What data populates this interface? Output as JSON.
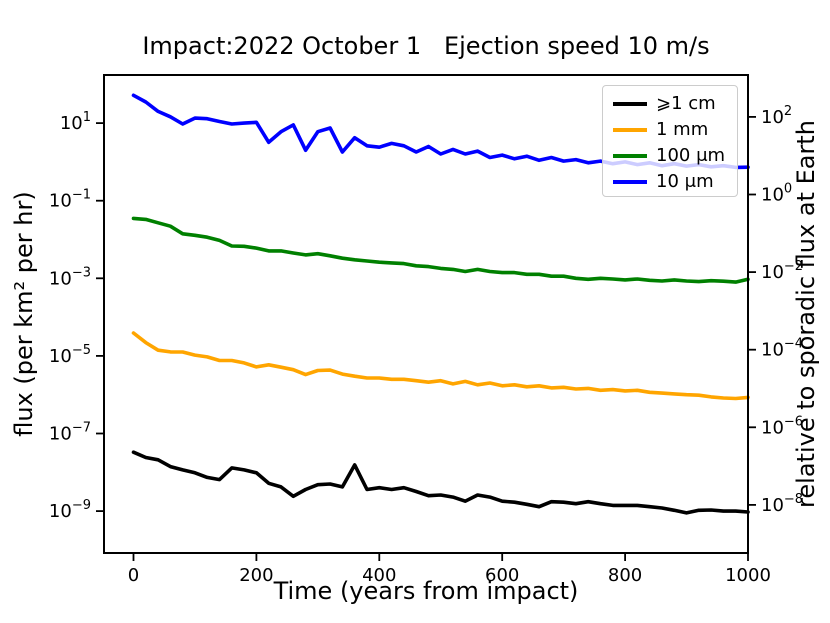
{
  "chart_data": {
    "type": "line",
    "title": "Impact:2022 October 1   Ejection speed 10 m/s",
    "xlabel": "Time (years from impact)",
    "ylabel_left": "flux (per km² per hr)",
    "ylabel_right": "relative to sporadic flux at Earth",
    "grid": false,
    "legend_position": "upper right",
    "x_ticks": [
      0,
      200,
      400,
      600,
      800,
      1000
    ],
    "xlim": [
      -48,
      1000
    ],
    "ylim_left_log10": [
      -10.08,
      2.24
    ],
    "left_tick_exponents": [
      1,
      -1,
      -3,
      -5,
      -7,
      -9
    ],
    "right_tick_exponents": [
      2,
      0,
      -2,
      -4,
      -6,
      -8
    ],
    "right_axis_top_tick_left_log10": 1.16,
    "x": [
      0,
      20,
      40,
      60,
      80,
      100,
      120,
      140,
      160,
      180,
      200,
      220,
      240,
      260,
      280,
      300,
      320,
      340,
      360,
      380,
      400,
      420,
      440,
      460,
      480,
      500,
      520,
      540,
      560,
      580,
      600,
      620,
      640,
      660,
      680,
      700,
      720,
      740,
      760,
      780,
      800,
      820,
      840,
      860,
      880,
      900,
      920,
      940,
      960,
      980,
      1000
    ],
    "series": [
      {
        "name": "⩾1 cm",
        "color": "#000000",
        "values": [
          3.3e-08,
          2.4e-08,
          2.1e-08,
          1.4e-08,
          1.15e-08,
          9.7e-09,
          7.4e-09,
          6.5e-09,
          1.3e-08,
          1.15e-08,
          9.7e-09,
          5.2e-09,
          4.2e-09,
          2.4e-09,
          3.6e-09,
          4.8e-09,
          5e-09,
          4.2e-09,
          1.55e-08,
          3.6e-09,
          4e-09,
          3.6e-09,
          4e-09,
          3.2e-09,
          2.5e-09,
          2.6e-09,
          2.3e-09,
          1.8e-09,
          2.6e-09,
          2.3e-09,
          1.8e-09,
          1.7e-09,
          1.5e-09,
          1.3e-09,
          1.75e-09,
          1.7e-09,
          1.55e-09,
          1.75e-09,
          1.55e-09,
          1.4e-09,
          1.4e-09,
          1.4e-09,
          1.3e-09,
          1.2e-09,
          1.05e-09,
          9e-10,
          1.05e-09,
          1.07e-09,
          1e-09,
          1e-09,
          9.5e-10
        ]
      },
      {
        "name": "1 mm",
        "color": "#FFA500",
        "values": [
          3.9e-05,
          2.2e-05,
          1.4e-05,
          1.27e-05,
          1.26e-05,
          1.05e-05,
          9.4e-06,
          7.6e-06,
          7.6e-06,
          6.6e-06,
          5.2e-06,
          5.9e-06,
          5.1e-06,
          4.4e-06,
          3.3e-06,
          4.2e-06,
          4.3e-06,
          3.4e-06,
          3e-06,
          2.7e-06,
          2.7e-06,
          2.5e-06,
          2.5e-06,
          2.3e-06,
          2.1e-06,
          2.3e-06,
          1.9e-06,
          2.2e-06,
          1.8e-06,
          2e-06,
          1.7e-06,
          1.8e-06,
          1.6e-06,
          1.7e-06,
          1.5e-06,
          1.55e-06,
          1.4e-06,
          1.45e-06,
          1.3e-06,
          1.35e-06,
          1.25e-06,
          1.3e-06,
          1.15e-06,
          1.1e-06,
          1.05e-06,
          1e-06,
          9.7e-07,
          8.8e-07,
          8.2e-07,
          8e-07,
          8.5e-07
        ]
      },
      {
        "name": "100 μm",
        "color": "#008000",
        "values": [
          0.035,
          0.033,
          0.027,
          0.022,
          0.014,
          0.0128,
          0.0115,
          0.0095,
          0.0068,
          0.0067,
          0.006,
          0.0051,
          0.0051,
          0.0045,
          0.004,
          0.0043,
          0.0038,
          0.0033,
          0.003,
          0.0028,
          0.0026,
          0.0025,
          0.0024,
          0.0021,
          0.002,
          0.0018,
          0.0017,
          0.0015,
          0.0017,
          0.0015,
          0.0014,
          0.0014,
          0.00127,
          0.00127,
          0.00113,
          0.00113,
          0.001,
          0.00094,
          0.001,
          0.00096,
          0.00091,
          0.00096,
          0.00089,
          0.00085,
          0.00091,
          0.00085,
          0.00082,
          0.00087,
          0.00084,
          0.0008,
          0.00094
        ]
      },
      {
        "name": "10 μm",
        "color": "#0000FF",
        "values": [
          52,
          35,
          20,
          14.5,
          9.5,
          13.5,
          13,
          11,
          9.5,
          10,
          10.5,
          3.2,
          6,
          9,
          2.0,
          6,
          7.5,
          1.8,
          4.2,
          2.6,
          2.4,
          3.0,
          2.6,
          1.8,
          2.5,
          1.6,
          2.1,
          1.6,
          1.9,
          1.3,
          1.5,
          1.2,
          1.4,
          1.1,
          1.3,
          1.05,
          1.15,
          0.95,
          1.05,
          0.9,
          1.0,
          0.85,
          0.95,
          0.8,
          0.9,
          0.78,
          0.85,
          0.75,
          0.8,
          0.72,
          0.73
        ]
      }
    ],
    "legend_order": [
      "⩾1 cm",
      "1 mm",
      "100 μm",
      "10 μm"
    ]
  }
}
